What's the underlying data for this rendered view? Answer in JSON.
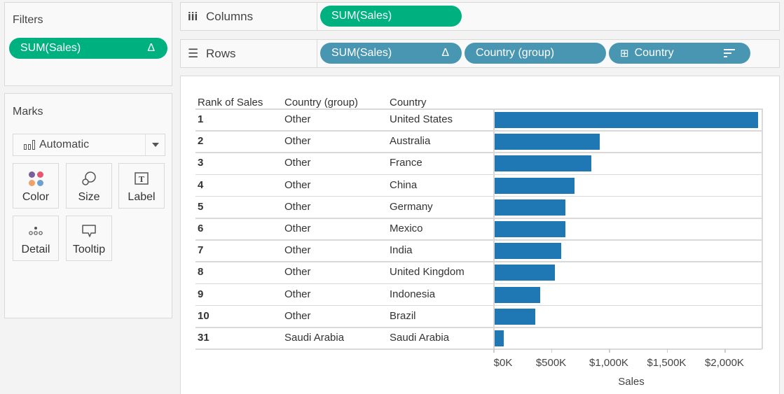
{
  "filters": {
    "title": "Filters",
    "pill_label": "SUM(Sales)",
    "pill_icon": "Δ"
  },
  "marks": {
    "title": "Marks",
    "mark_type": "Automatic",
    "buttons": [
      {
        "label": "Color",
        "icon": "color-icon"
      },
      {
        "label": "Size",
        "icon": "size-icon"
      },
      {
        "label": "Label",
        "icon": "label-icon"
      },
      {
        "label": "Detail",
        "icon": "detail-icon"
      },
      {
        "label": "Tooltip",
        "icon": "tooltip-icon"
      }
    ],
    "color_dots": [
      "#7b5e9c",
      "#e8566e",
      "#f2a06a",
      "#6f9fcf"
    ]
  },
  "shelves": {
    "columns": {
      "label": "Columns",
      "icon": "iii",
      "pills": [
        {
          "label": "SUM(Sales)",
          "color": "#00b180"
        }
      ]
    },
    "rows": {
      "label": "Rows",
      "icon": "☰",
      "pills": [
        {
          "label": "SUM(Sales)",
          "icon": "Δ",
          "color": "#4996b2"
        },
        {
          "label": "Country (group)",
          "color": "#4996b2"
        },
        {
          "label": "Country",
          "prefix_icon": "⊞",
          "suffix_icon": "sort-descending",
          "color": "#4996b2"
        }
      ]
    }
  },
  "table": {
    "headers": [
      "Rank of Sales",
      "Country (group)",
      "Country"
    ],
    "rows": [
      {
        "rank": "1",
        "group": "Other",
        "country": "United States"
      },
      {
        "rank": "2",
        "group": "Other",
        "country": "Australia"
      },
      {
        "rank": "3",
        "group": "Other",
        "country": "France"
      },
      {
        "rank": "4",
        "group": "Other",
        "country": "China"
      },
      {
        "rank": "5",
        "group": "Other",
        "country": "Germany"
      },
      {
        "rank": "6",
        "group": "Other",
        "country": "Mexico"
      },
      {
        "rank": "7",
        "group": "Other",
        "country": "India"
      },
      {
        "rank": "8",
        "group": "Other",
        "country": "United Kingdom"
      },
      {
        "rank": "9",
        "group": "Other",
        "country": "Indonesia"
      },
      {
        "rank": "10",
        "group": "Other",
        "country": "Brazil"
      },
      {
        "rank": "31",
        "group": "Saudi Arabia",
        "country": "Saudi Arabia"
      }
    ]
  },
  "chart_data": {
    "type": "bar",
    "orientation": "horizontal",
    "title": "",
    "xlabel": "Sales",
    "ylabel": "",
    "bar_color": "#1f77b4",
    "categories": [
      "United States",
      "Australia",
      "France",
      "China",
      "Germany",
      "Mexico",
      "India",
      "United Kingdom",
      "Indonesia",
      "Brazil",
      "Saudi Arabia"
    ],
    "rank": [
      1,
      2,
      3,
      4,
      5,
      6,
      7,
      8,
      9,
      10,
      31
    ],
    "country_group": [
      "Other",
      "Other",
      "Other",
      "Other",
      "Other",
      "Other",
      "Other",
      "Other",
      "Other",
      "Other",
      "Saudi Arabia"
    ],
    "values": [
      2286,
      914,
      845,
      696,
      621,
      621,
      583,
      526,
      403,
      355,
      82
    ],
    "value_units": "$K",
    "xlim": [
      0,
      2400
    ],
    "xticks": [
      0,
      500,
      1000,
      1500,
      2000
    ],
    "xtick_labels": [
      "$0K",
      "$500K",
      "$1,000K",
      "$1,500K",
      "$2,000K"
    ],
    "grid": false,
    "legend": null
  }
}
